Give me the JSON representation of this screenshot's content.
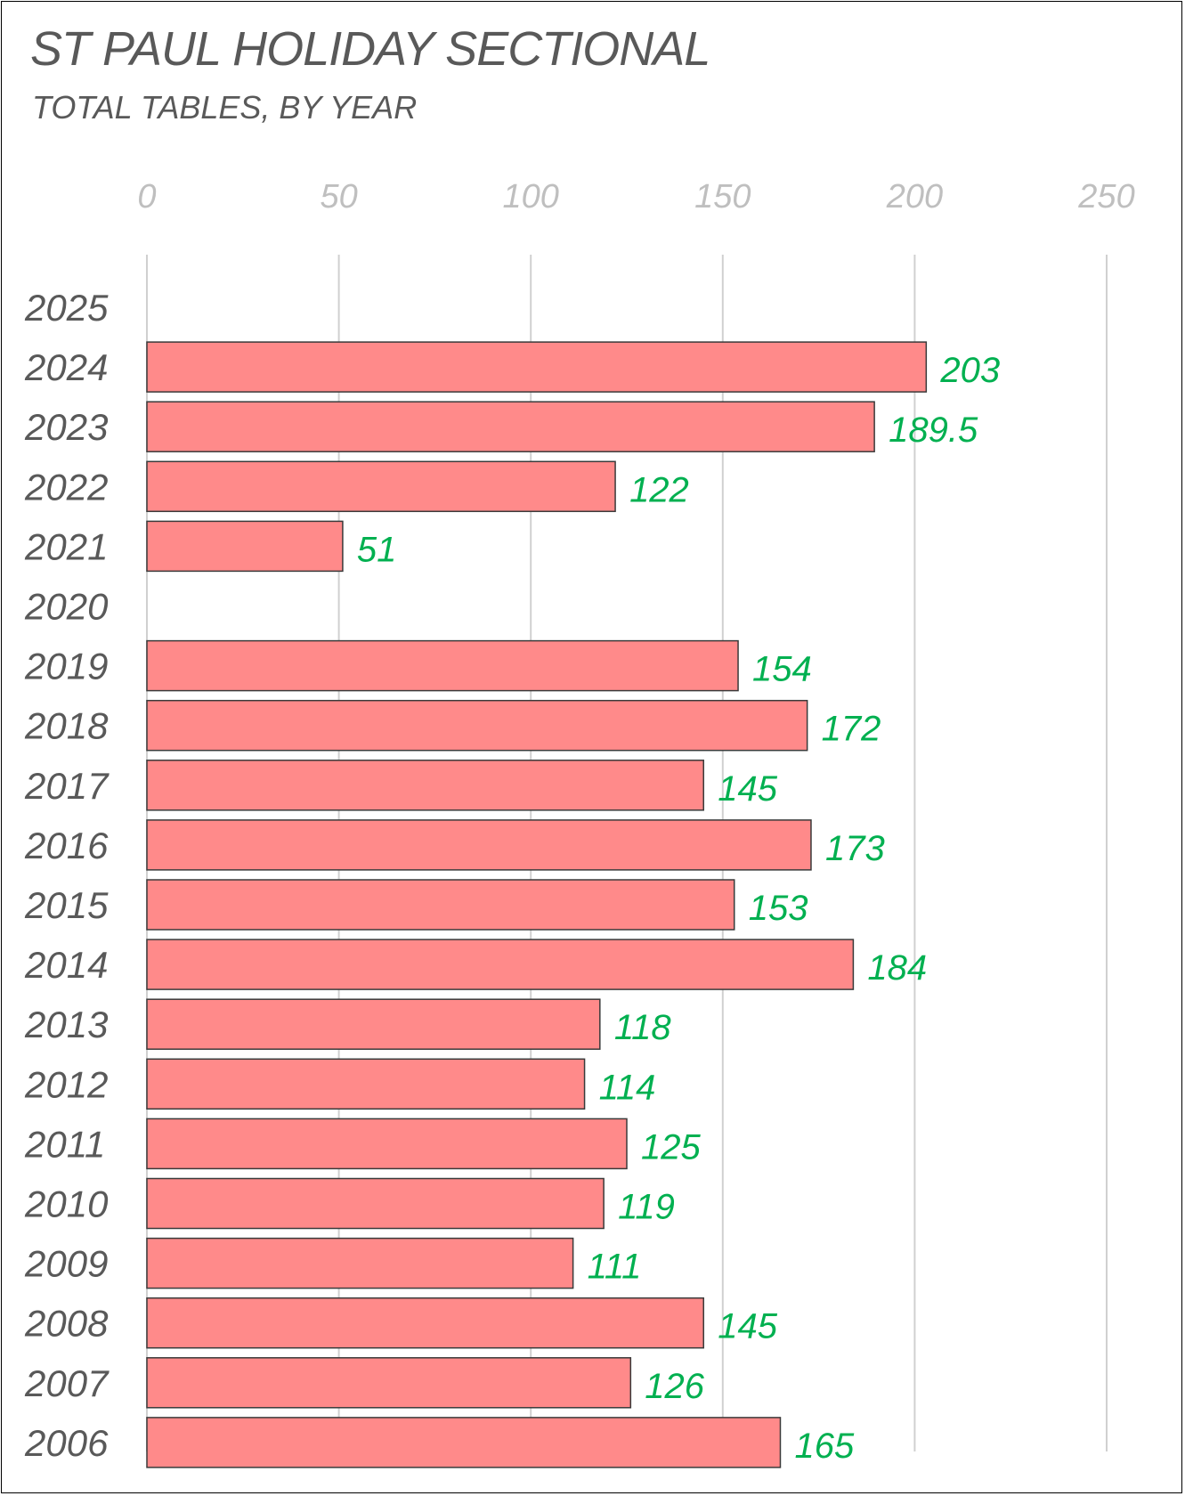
{
  "chart_data": {
    "type": "bar",
    "orientation": "horizontal",
    "title": "ST PAUL HOLIDAY SECTIONAL",
    "subtitle": "TOTAL TABLES, BY YEAR",
    "categories": [
      "2025",
      "2024",
      "2023",
      "2022",
      "2021",
      "2020",
      "2019",
      "2018",
      "2017",
      "2016",
      "2015",
      "2014",
      "2013",
      "2012",
      "2011",
      "2010",
      "2009",
      "2008",
      "2007",
      "2006"
    ],
    "values": [
      null,
      203,
      189.5,
      122,
      51,
      null,
      154,
      172,
      145,
      173,
      153,
      184,
      118,
      114,
      125,
      119,
      111,
      145,
      126,
      165
    ],
    "value_labels": [
      "",
      "203",
      "189.5",
      "122",
      "51",
      "",
      "154",
      "172",
      "145",
      "173",
      "153",
      "184",
      "118",
      "114",
      "125",
      "119",
      "111",
      "145",
      "126",
      "165"
    ],
    "xlim": [
      0,
      250
    ],
    "x_ticks": [
      0,
      50,
      100,
      150,
      200,
      250
    ],
    "x_tick_labels": [
      "0",
      "50",
      "100",
      "150",
      "200",
      "250"
    ],
    "x_axis_position": "top",
    "grid": "vertical",
    "xlabel": "",
    "ylabel": "",
    "colors": {
      "bar_fill": "#ff8a8a",
      "bar_edge": "#3a3a3a",
      "data_label": "#00b050",
      "category_label": "#595959",
      "tick_label": "#bfbfbf",
      "grid": "#d0d0d0",
      "title": "#595959"
    }
  }
}
